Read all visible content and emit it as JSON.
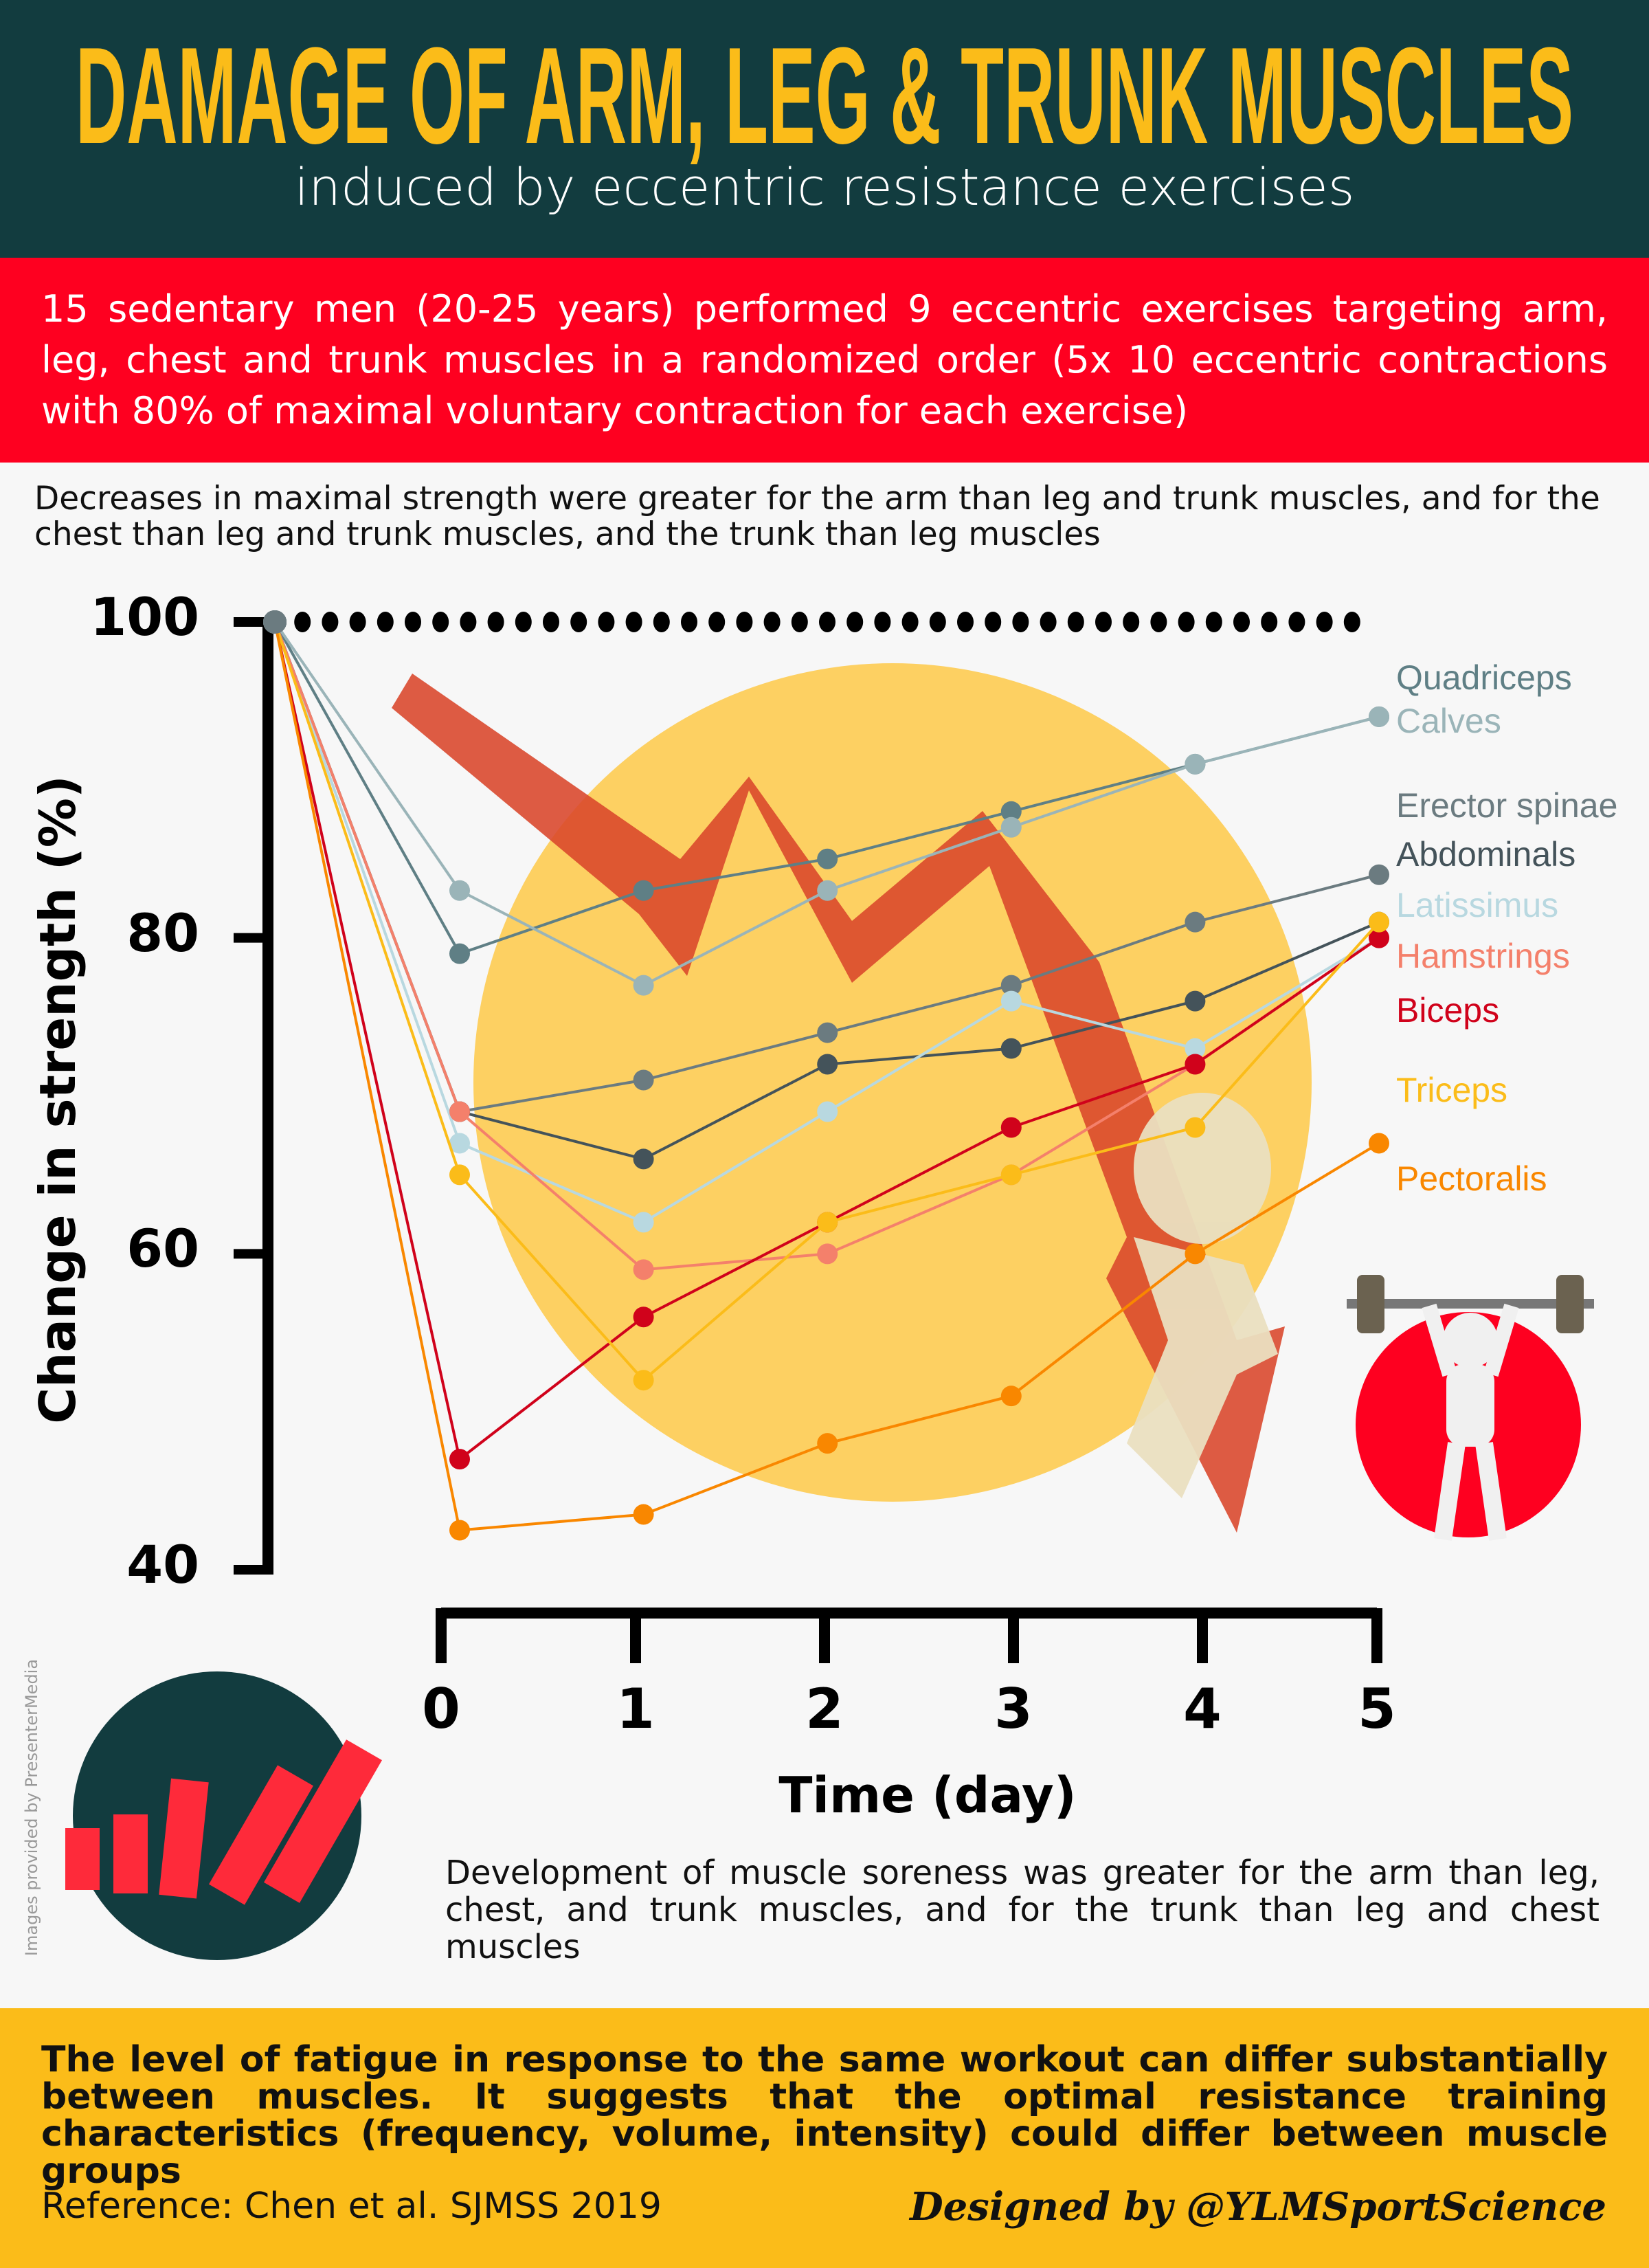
{
  "header": {
    "title": "DAMAGE OF ARM, LEG & TRUNK MUSCLES",
    "subtitle": "induced by eccentric resistance exercises"
  },
  "study": "15 sedentary men (20-25 years) performed 9 eccentric exercises targeting arm, leg, chest and trunk muscles in a randomized order (5x 10 eccentric contractions with 80% of maximal voluntary contraction for each exercise)",
  "strength_finding": "Decreases in maximal strength were greater for the arm than leg and trunk muscles, and for the chest than leg and trunk muscles, and the trunk than leg muscles",
  "soreness_finding": "Development of muscle soreness was greater for the arm than leg, chest, and trunk muscles, and for the trunk than leg and chest muscles",
  "credit": "Images provided by PresenterMedia",
  "conclusion": "The level of fatigue in response to the same workout can differ substantially between muscles. It suggests that the optimal resistance training characteristics (frequency, volume, intensity) could differ between muscle groups",
  "reference": "Reference: Chen et al. SJMSS 2019",
  "designer": "Designed by @YLMSportScience",
  "colors": {
    "header": "#123c3f",
    "band": "#fe0020",
    "accent": "#fbbc19",
    "circle": "#fdd062",
    "arrow": "#d9462a"
  },
  "chart_data": {
    "type": "line",
    "xlabel": "Time (day)",
    "ylabel": "Change in strength (%)",
    "x": [
      0,
      1,
      2,
      3,
      4,
      5
    ],
    "x_ticks": [
      "0",
      "1",
      "2",
      "3",
      "4",
      "5"
    ],
    "y_ticks": [
      "100",
      "80",
      "60",
      "40"
    ],
    "ylim": [
      40,
      100
    ],
    "baseline": 100,
    "legend": "right",
    "series": [
      {
        "name": "Quadriceps",
        "color": "#5f7f85",
        "values": [
          79,
          83,
          85,
          88,
          91,
          94
        ]
      },
      {
        "name": "Calves",
        "color": "#9ab4b8",
        "values": [
          83,
          77,
          83,
          87,
          91,
          94
        ]
      },
      {
        "name": "Erector spinae",
        "color": "#6b7b80",
        "values": [
          69,
          71,
          74,
          77,
          81,
          84
        ]
      },
      {
        "name": "Abdominals",
        "color": "#44535a",
        "values": [
          69,
          66,
          72,
          73,
          76,
          81
        ]
      },
      {
        "name": "Latissimus",
        "color": "#b8d8e0",
        "values": [
          67,
          62,
          69,
          76,
          73,
          80
        ]
      },
      {
        "name": "Hamstrings",
        "color": "#f4806b",
        "values": [
          69,
          59,
          60,
          65,
          72,
          80
        ]
      },
      {
        "name": "Biceps",
        "color": "#d0021b",
        "values": [
          47,
          56,
          62,
          68,
          72,
          80
        ]
      },
      {
        "name": "Triceps",
        "color": "#fbbc19",
        "values": [
          65,
          52,
          62,
          65,
          68,
          81
        ]
      },
      {
        "name": "Pectoralis",
        "color": "#f98700",
        "values": [
          42.5,
          43.5,
          48,
          51,
          60,
          67
        ]
      }
    ]
  }
}
